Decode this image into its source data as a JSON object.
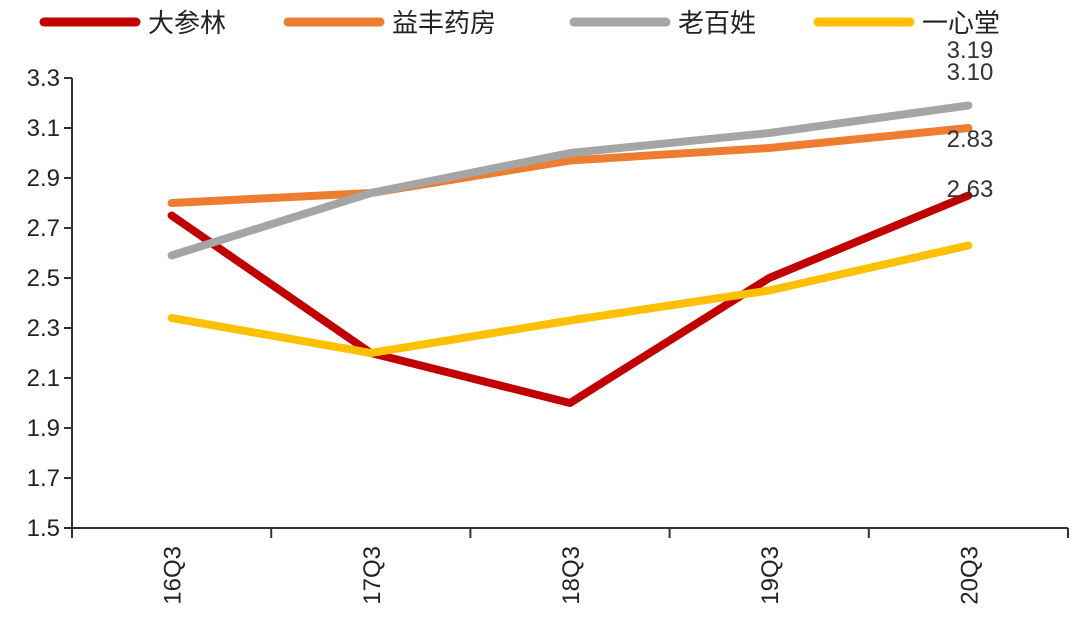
{
  "chart_data": {
    "type": "line",
    "categories": [
      "16Q3",
      "17Q3",
      "18Q3",
      "19Q3",
      "20Q3"
    ],
    "ylim": [
      1.5,
      3.3
    ],
    "yticks": [
      "1.5",
      "1.7",
      "1.9",
      "2.1",
      "2.3",
      "2.5",
      "2.7",
      "2.9",
      "3.1",
      "3.3"
    ],
    "legend_position": "top",
    "grid": false,
    "series": [
      {
        "name": "大参林",
        "color": "#C00000",
        "values": [
          2.75,
          2.2,
          2.0,
          2.5,
          2.83
        ]
      },
      {
        "name": "益丰药房",
        "color": "#ED7D31",
        "values": [
          2.8,
          2.84,
          2.97,
          3.02,
          3.1
        ]
      },
      {
        "name": "老百姓",
        "color": "#A5A5A5",
        "values": [
          2.59,
          2.84,
          3.0,
          3.08,
          3.19
        ]
      },
      {
        "name": "一心堂",
        "color": "#FFC000",
        "values": [
          2.34,
          2.2,
          2.33,
          2.45,
          2.63
        ]
      }
    ],
    "data_labels": [
      {
        "text": "3.19",
        "x": "20Q3",
        "y": 3.19
      },
      {
        "text": "3.10",
        "x": "20Q3",
        "y": 3.1
      },
      {
        "text": "2.83",
        "x": "20Q3",
        "y": 2.83
      },
      {
        "text": "2.63",
        "x": "20Q3",
        "y": 2.63
      }
    ]
  }
}
